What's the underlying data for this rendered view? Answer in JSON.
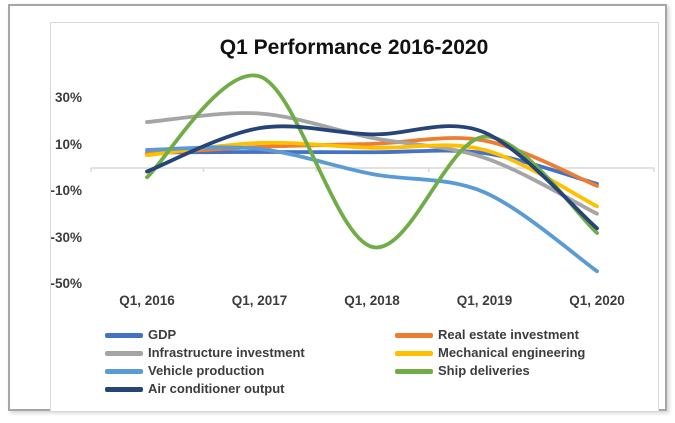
{
  "window": {
    "kind": "embedded-chart-screenshot"
  },
  "chart_data": {
    "type": "line",
    "title": "Q1 Performance 2016-2020",
    "smooth": true,
    "categories": [
      "Q1, 2016",
      "Q1, 2017",
      "Q1, 2018",
      "Q1, 2019",
      "Q1, 2020"
    ],
    "xlabel": "",
    "ylabel": "",
    "y_tick_labels": [
      "30%",
      "10%",
      "-10%",
      "-30%",
      "-50%"
    ],
    "y_tick_values": [
      30,
      10,
      -10,
      -30,
      -50
    ],
    "ylim": [
      -52,
      42
    ],
    "grid": "zero-axis-line-only",
    "axis_color": "#d9d9d9",
    "legend_position": "bottom",
    "legend_columns": 2,
    "series": [
      {
        "name": "GDP",
        "color": "#4472C4",
        "values": [
          6.7,
          6.9,
          6.8,
          6.4,
          -6.8
        ]
      },
      {
        "name": "Real estate investment",
        "color": "#ED7D31",
        "values": [
          6.2,
          9.1,
          10.4,
          11.8,
          -7.7
        ]
      },
      {
        "name": "Infrastructure investment",
        "color": "#A5A5A5",
        "values": [
          19.8,
          23.5,
          13.0,
          4.4,
          -19.7
        ]
      },
      {
        "name": "Mechanical engineering",
        "color": "#FFC000",
        "values": [
          5.5,
          10.8,
          8.7,
          7.8,
          -16.5
        ]
      },
      {
        "name": "Vehicle production",
        "color": "#5B9BD5",
        "values": [
          7.8,
          8.2,
          -2.6,
          -10.5,
          -44.5
        ]
      },
      {
        "name": "Ship deliveries",
        "color": "#70AD47",
        "values": [
          -4.0,
          39.5,
          -34.0,
          13.5,
          -28.0
        ]
      },
      {
        "name": "Air conditioner output",
        "color": "#264478",
        "values": [
          -1.5,
          17.2,
          14.5,
          15.3,
          -26.0
        ]
      }
    ]
  }
}
